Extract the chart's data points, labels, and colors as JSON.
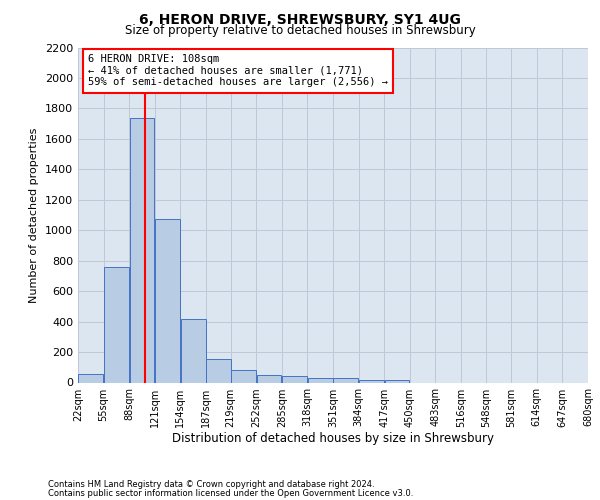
{
  "title": "6, HERON DRIVE, SHREWSBURY, SY1 4UG",
  "subtitle": "Size of property relative to detached houses in Shrewsbury",
  "xlabel": "Distribution of detached houses by size in Shrewsbury",
  "ylabel": "Number of detached properties",
  "footnote1": "Contains HM Land Registry data © Crown copyright and database right 2024.",
  "footnote2": "Contains public sector information licensed under the Open Government Licence v3.0.",
  "bin_edges": [
    22,
    55,
    88,
    121,
    154,
    187,
    219,
    252,
    285,
    318,
    351,
    384,
    417,
    450,
    483,
    516,
    548,
    581,
    614,
    647,
    680
  ],
  "bar_heights": [
    55,
    760,
    1740,
    1075,
    415,
    155,
    80,
    48,
    42,
    28,
    28,
    18,
    18,
    0,
    0,
    0,
    0,
    0,
    0,
    0
  ],
  "bar_color": "#b8cce4",
  "bar_edgecolor": "#4472c4",
  "grid_color": "#c0c8d8",
  "background_color": "#dce6f1",
  "property_size": 108,
  "vline_color": "#ff0000",
  "annotation_line1": "6 HERON DRIVE: 108sqm",
  "annotation_line2": "← 41% of detached houses are smaller (1,771)",
  "annotation_line3": "59% of semi-detached houses are larger (2,556) →",
  "annotation_box_color": "#ff0000",
  "annotation_bg": "#ffffff",
  "ylim": [
    0,
    2200
  ],
  "yticks": [
    0,
    200,
    400,
    600,
    800,
    1000,
    1200,
    1400,
    1600,
    1800,
    2000,
    2200
  ]
}
